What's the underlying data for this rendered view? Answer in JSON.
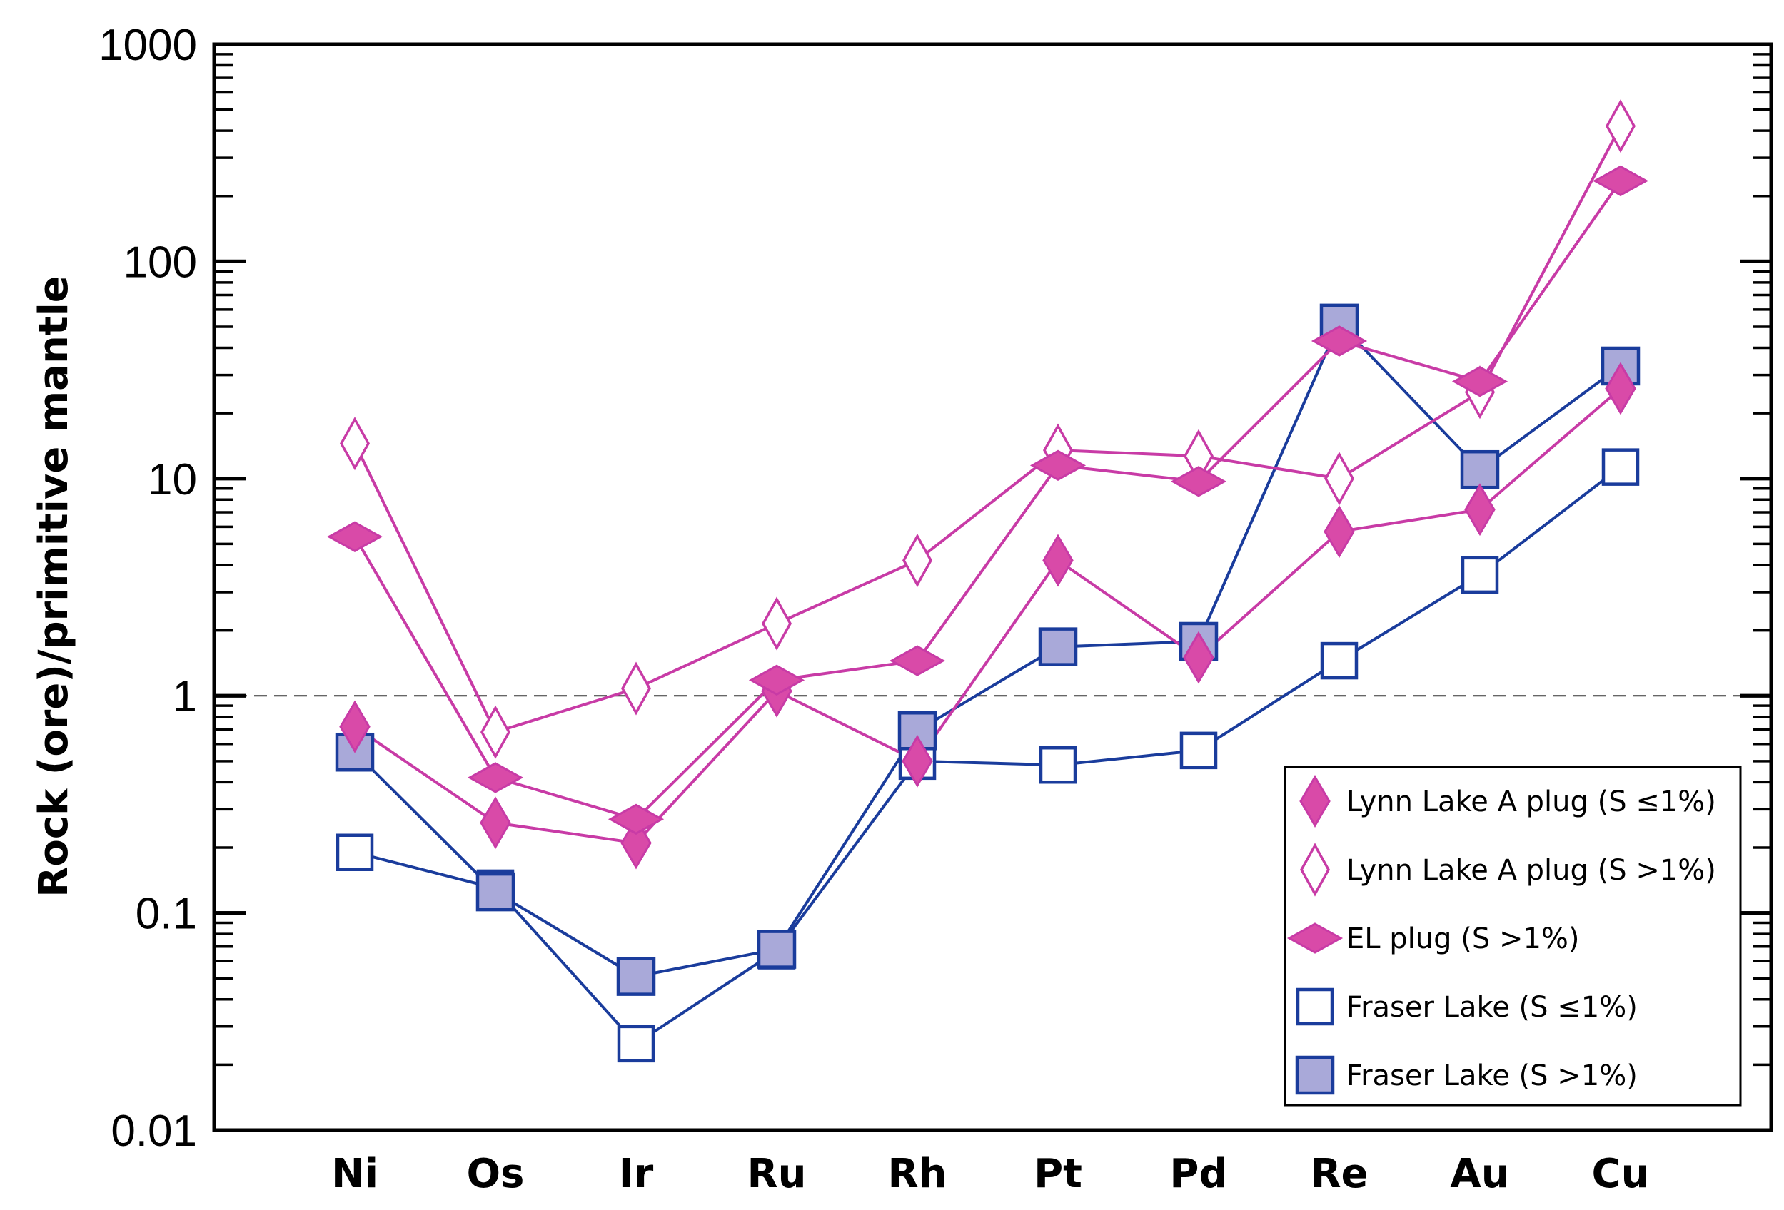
{
  "chart_data": {
    "type": "line",
    "title": "",
    "xlabel": "",
    "ylabel": "Rock (ore)/primitive mantle",
    "yscale": "log",
    "ylim": [
      0.01,
      1000
    ],
    "yticks": [
      0.01,
      0.1,
      1,
      10,
      100,
      1000
    ],
    "ytick_labels": [
      "0.01",
      "0.1",
      "1",
      "10",
      "100",
      "1000"
    ],
    "reference_line": 1,
    "legend_position": "bottom-right",
    "categories": [
      "Ni",
      "Os",
      "Ir",
      "Ru",
      "Rh",
      "Pt",
      "Pd",
      "Re",
      "Au",
      "Cu"
    ],
    "colors": {
      "pink": "#c83ba6",
      "pink_fill": "#d94aa8",
      "blue": "#1a3c9c",
      "blue_fill": "#a9a9d9"
    },
    "series": [
      {
        "name": "Lynn Lake A plug (S ≤1%)",
        "marker": "tall-diamond-filled",
        "color": "#c83ba6",
        "values": [
          0.72,
          0.26,
          0.21,
          1.05,
          0.5,
          4.2,
          1.5,
          5.7,
          7.2,
          26
        ]
      },
      {
        "name": "Lynn Lake A plug (S >1%)",
        "marker": "tall-diamond-open",
        "color": "#c83ba6",
        "values": [
          14.5,
          0.68,
          1.08,
          2.15,
          4.2,
          13.5,
          12.7,
          10.0,
          25,
          420
        ]
      },
      {
        "name": "EL plug (S >1%)",
        "marker": "wide-diamond-filled",
        "color": "#c83ba6",
        "values": [
          5.4,
          0.42,
          0.27,
          1.18,
          1.45,
          11.5,
          9.7,
          43,
          28,
          235
        ]
      },
      {
        "name": "Fraser Lake (S ≤1%)",
        "marker": "square-open",
        "color": "#1a3c9c",
        "values": [
          0.19,
          0.13,
          0.025,
          0.067,
          0.5,
          0.48,
          0.56,
          1.45,
          3.6,
          11.3
        ]
      },
      {
        "name": "Fraser Lake (S >1%)",
        "marker": "square-filled",
        "color": "#1a3c9c",
        "values": [
          0.55,
          0.125,
          0.051,
          0.068,
          0.69,
          1.68,
          1.78,
          52,
          11,
          33
        ]
      }
    ]
  }
}
